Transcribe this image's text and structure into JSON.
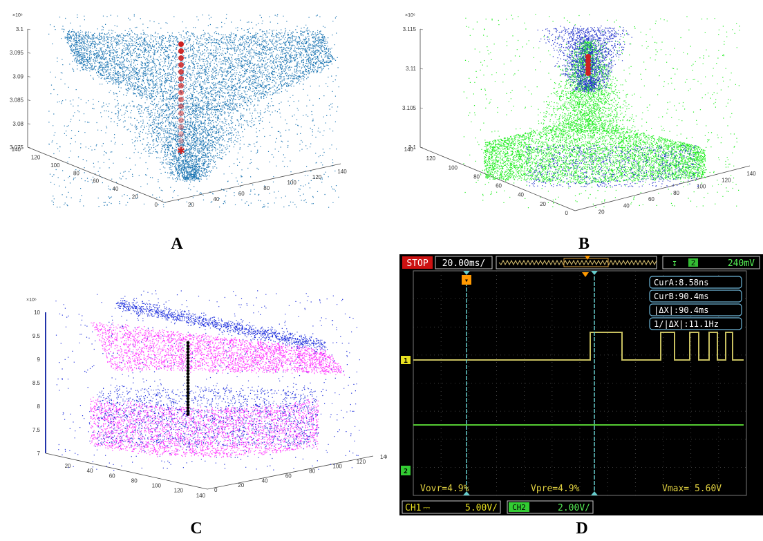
{
  "panel_labels": [
    "A",
    "B",
    "C",
    "D"
  ],
  "chart_data": [
    {
      "panel": "A",
      "type": "scatter",
      "title": "",
      "z_exponent": "×10⁶",
      "z_ticks": [
        "3.075",
        "3.08",
        "3.085",
        "3.09",
        "3.095",
        "3.1"
      ],
      "y_ticks": [
        "0",
        "20",
        "40",
        "60",
        "80",
        "100",
        "120",
        "140"
      ],
      "x_ticks": [
        "20",
        "40",
        "60",
        "80",
        "100",
        "120",
        "140"
      ],
      "zlim": [
        3.075,
        3.1
      ],
      "series": [
        {
          "color": "#1f77b4",
          "marker": "dot"
        },
        {
          "color": "#cc2222",
          "marker": "star"
        }
      ]
    },
    {
      "panel": "B",
      "type": "scatter",
      "title": "",
      "z_exponent": "×10⁶",
      "z_ticks": [
        "3.1",
        "3.105",
        "3.11",
        "3.115"
      ],
      "y_ticks": [
        "0",
        "20",
        "40",
        "60",
        "80",
        "100",
        "120",
        "140"
      ],
      "x_ticks": [
        "20",
        "40",
        "60",
        "80",
        "100",
        "120",
        "140"
      ],
      "zlim": [
        3.1,
        3.115
      ],
      "series": [
        {
          "color": "#22ee22",
          "marker": "dot"
        },
        {
          "color": "#2233cc",
          "marker": "dot"
        },
        {
          "color": "#cc2222",
          "marker": "star"
        }
      ]
    },
    {
      "panel": "C",
      "type": "scatter",
      "title": "",
      "z_exponent": "×10⁶",
      "z_ticks": [
        "7",
        "7.5",
        "8",
        "8.5",
        "9",
        "9.5",
        "10"
      ],
      "x_ticks": [
        "20",
        "40",
        "60",
        "80",
        "100",
        "120",
        "140"
      ],
      "y_ticks": [
        "0",
        "20",
        "40",
        "60",
        "80",
        "100",
        "120",
        "140"
      ],
      "zlim": [
        7,
        10
      ],
      "series": [
        {
          "color": "#ff33ff",
          "marker": "dot"
        },
        {
          "color": "#2233dd",
          "marker": "dot"
        },
        {
          "color": "#000000",
          "marker": "dot"
        }
      ]
    },
    {
      "panel": "D",
      "type": "line",
      "title": "",
      "status": "STOP",
      "timebase": "20.00ms/",
      "trigger": "2",
      "trigger_level": "240mV",
      "cursors": [
        "CurA:8.58ns",
        "CurB:90.4ms",
        "|ΔX|:90.4ms",
        "1/|ΔX|:11.1Hz"
      ],
      "measurements": [
        "Vovr=4.9%",
        "Vpre=4.9%",
        "Vmax= 5.60V"
      ],
      "ch1_marker": "1",
      "ch2_marker": "2",
      "ch1_label": "CH1",
      "ch1_scale": "5.00V/",
      "ch2_label": "CH2",
      "ch2_scale": "2.00V/",
      "series": [
        {
          "name": "CH1",
          "color": "#c8c060",
          "x": [
            0,
            256,
            256,
            302,
            302,
            358,
            358,
            378,
            378,
            400,
            400,
            413,
            413,
            428,
            428,
            440,
            440,
            452,
            452,
            462,
            462,
            478
          ],
          "y": [
            0,
            0,
            1,
            1,
            0,
            0,
            1,
            1,
            0,
            0,
            1,
            1,
            0,
            0,
            1,
            1,
            0,
            0,
            1,
            1,
            0,
            0
          ]
        },
        {
          "name": "CH2",
          "color": "#55cc33",
          "x": [
            0,
            478
          ],
          "y": [
            0,
            0
          ]
        }
      ]
    }
  ]
}
